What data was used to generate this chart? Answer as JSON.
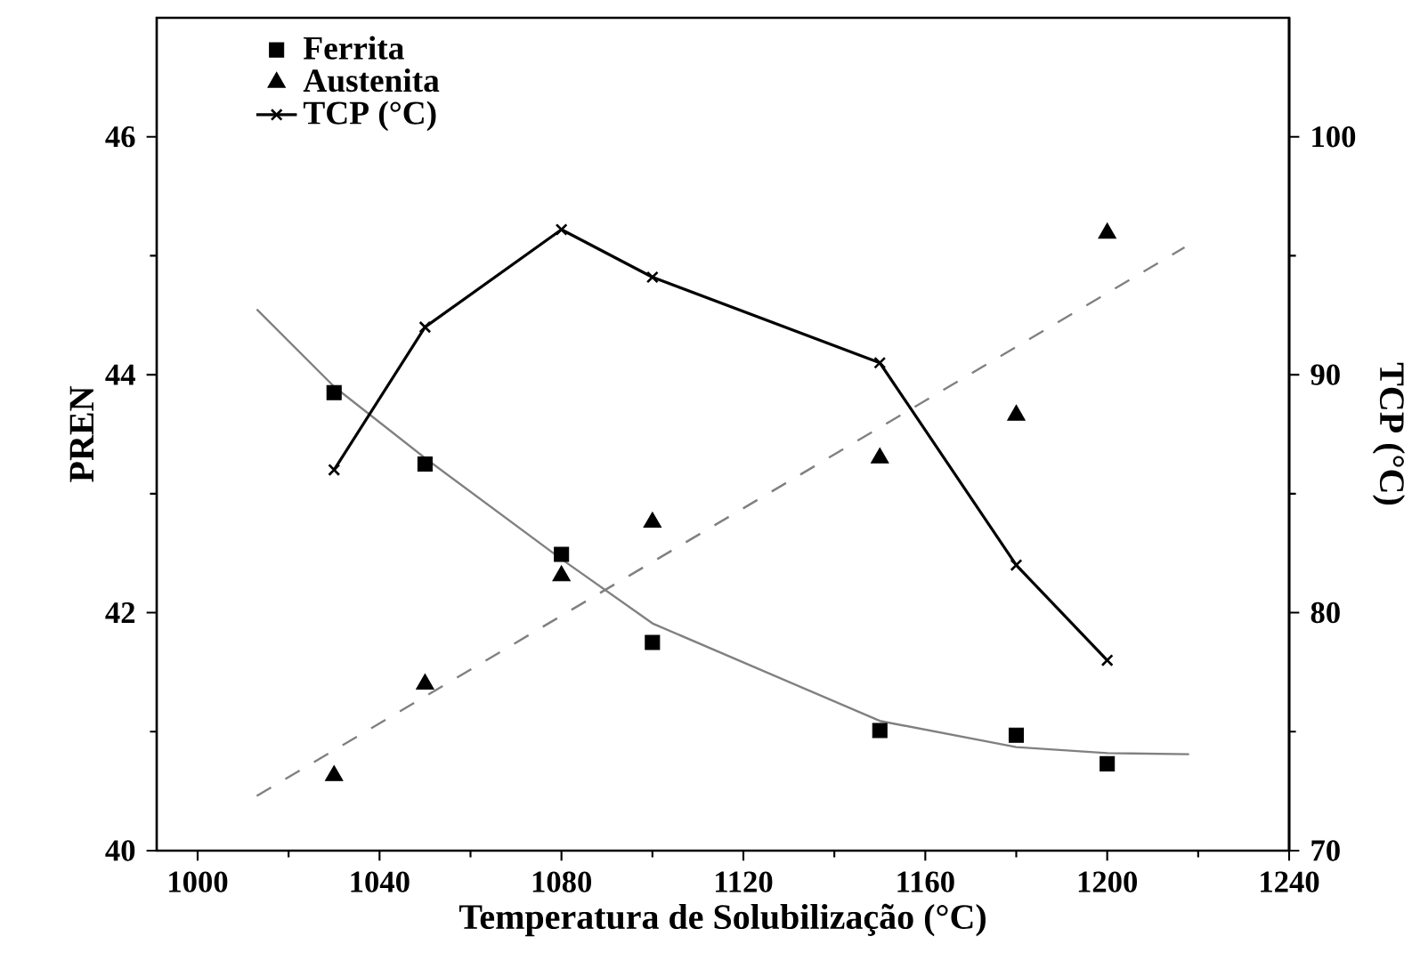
{
  "chart_data": {
    "type": "scatter",
    "xlabel": "Temperatura de Solubilização (°C)",
    "ylabel": "PREN",
    "y2label": "TCP (°C)",
    "xlim": [
      991,
      1240
    ],
    "xticks": [
      1000,
      1040,
      1080,
      1120,
      1160,
      1200,
      1240
    ],
    "ylim": [
      40,
      47
    ],
    "yticks": [
      40,
      42,
      44,
      46
    ],
    "y2lim": [
      70,
      105
    ],
    "y2ticks": [
      70,
      80,
      90,
      100
    ],
    "legend": "top left",
    "grid": false,
    "series": [
      {
        "name": "Ferrita",
        "marker": "square",
        "color": "#000000",
        "x": [
          1030,
          1050,
          1080,
          1100,
          1150,
          1180,
          1200
        ],
        "values": [
          43.85,
          43.25,
          42.49,
          41.75,
          41.01,
          40.97,
          40.73
        ]
      },
      {
        "name": "Austenita",
        "marker": "triangle",
        "color": "#000000",
        "x": [
          1030,
          1050,
          1080,
          1100,
          1150,
          1180,
          1200
        ],
        "values": [
          40.63,
          41.4,
          42.31,
          42.76,
          43.3,
          43.66,
          45.19
        ]
      },
      {
        "type": "line",
        "marker": "none",
        "line_style": "solid",
        "color": "#808080",
        "x": [
          1013,
          1030,
          1050,
          1080,
          1100,
          1150,
          1180,
          1200,
          1218
        ],
        "values": [
          44.55,
          43.9,
          43.3,
          42.45,
          41.91,
          41.09,
          40.87,
          40.82,
          40.81
        ]
      },
      {
        "type": "line",
        "marker": "none",
        "line_style": "dashed",
        "color": "#808080",
        "x": [
          1013,
          1217
        ],
        "values": [
          40.46,
          45.07
        ]
      },
      {
        "name": "TCP (°C)",
        "type": "line",
        "marker": "cross",
        "line_style": "solid",
        "axis": "y2",
        "color": "#000000",
        "x": [
          1030,
          1050,
          1080,
          1100,
          1150,
          1180,
          1200
        ],
        "values": [
          86,
          92,
          96.1,
          94.1,
          90.5,
          82,
          78
        ]
      }
    ]
  }
}
